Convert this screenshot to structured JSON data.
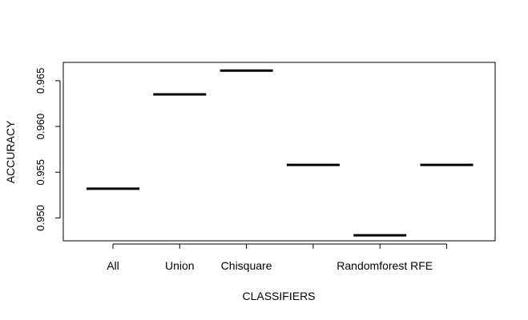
{
  "chart_data": {
    "type": "boxplot",
    "title": "",
    "xlabel": "CLASSIFIERS",
    "ylabel": "ACCURACY",
    "categories": [
      "All",
      "Union",
      "Chisquare",
      "",
      "Randomforest",
      "RFE"
    ],
    "tick_labels_printed": [
      "All",
      "Union",
      "Chisquare",
      "Randomforest RFE"
    ],
    "values": [
      0.9532,
      0.9635,
      0.9661,
      0.9558,
      0.9481,
      0.9558
    ],
    "ylim": [
      0.9475,
      0.967
    ],
    "yticks": [
      "0.950",
      "0.955",
      "0.960",
      "0.965"
    ],
    "grid": false,
    "legend": "none",
    "line_color": "#000000"
  }
}
